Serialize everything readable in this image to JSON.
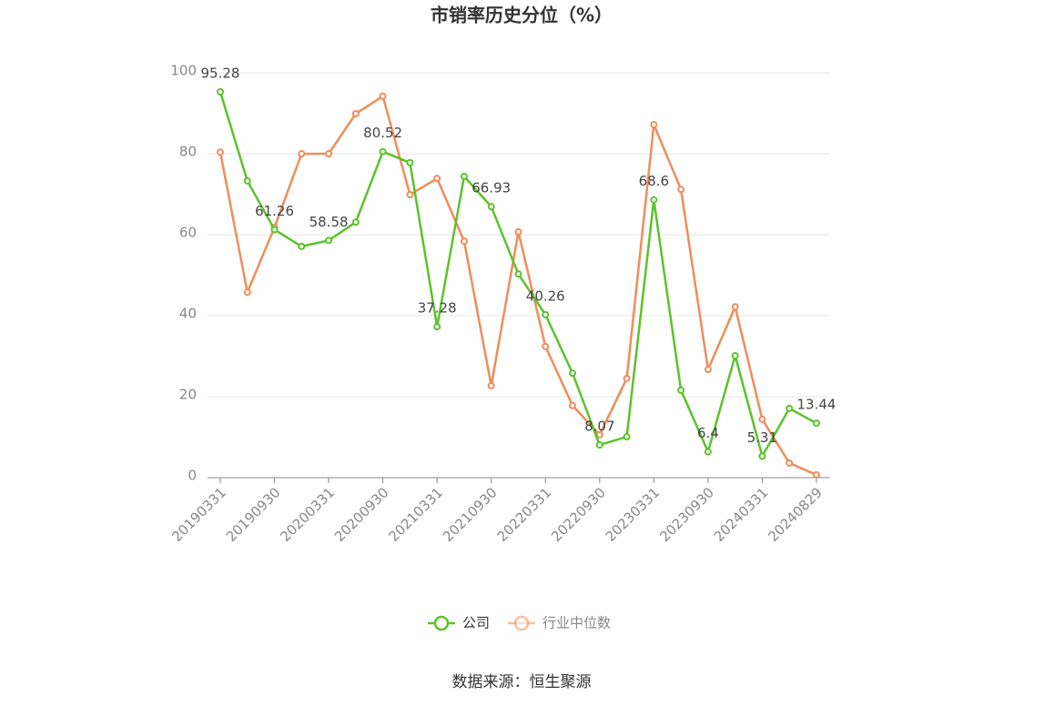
{
  "chart_data": {
    "type": "line",
    "title": "市销率历史分位（%）",
    "categories": [
      "20190331",
      null,
      "20190930",
      null,
      "20200331",
      null,
      "20200930",
      null,
      "20210331",
      null,
      "20210930",
      null,
      "20220331",
      null,
      "20220930",
      null,
      "20230331",
      null,
      "20230930",
      null,
      "20240331",
      null,
      "20240829"
    ],
    "series": [
      {
        "name": "公司",
        "color": "#5cc22a",
        "values": [
          95.28,
          73.3,
          61.26,
          57.1,
          58.58,
          63.1,
          80.52,
          77.8,
          37.28,
          74.4,
          66.93,
          50.3,
          40.26,
          25.8,
          8.07,
          10.1,
          68.6,
          21.6,
          6.4,
          30.1,
          5.31,
          17.1,
          13.44
        ]
      },
      {
        "name": "行业中位数",
        "color": "#f28c5a",
        "values": [
          80.4,
          45.8,
          61.8,
          80.0,
          80.0,
          89.9,
          94.2,
          69.9,
          73.9,
          58.4,
          22.7,
          60.7,
          32.4,
          17.8,
          10.6,
          24.5,
          87.2,
          71.2,
          26.7,
          42.2,
          14.4,
          3.6,
          0.7
        ]
      }
    ],
    "ylim": [
      0,
      100
    ],
    "yticks": [
      0,
      20,
      40,
      60,
      80,
      100
    ],
    "grid": true,
    "legend": "bottom",
    "source": "数据来源：恒生聚源"
  }
}
